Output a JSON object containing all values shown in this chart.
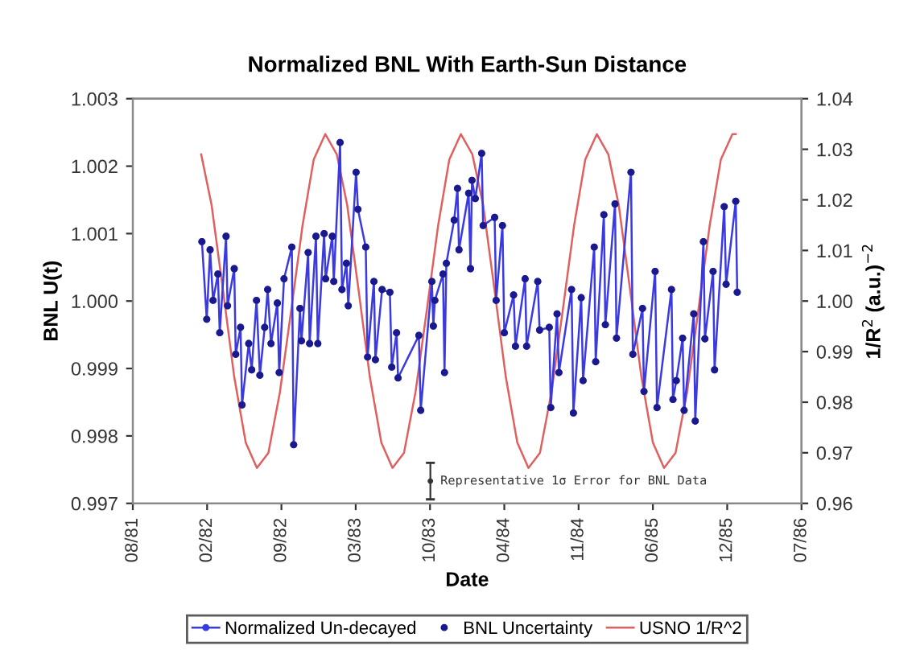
{
  "chart_data": {
    "type": "line",
    "title": "Normalized BNL With Earth-Sun Distance",
    "xlabel": "Date",
    "ylabel": "BNL U(t)",
    "y2label": "1/R$^{2}$ (a.u.)$^{−2}$",
    "x": [
      "1982-02-03",
      "1982-02-16",
      "1982-02-25",
      "1982-03-05",
      "1982-03-18",
      "1982-03-23",
      "1982-04-09",
      "1982-04-13",
      "1982-05-01",
      "1982-05-05",
      "1982-05-18",
      "1982-05-22",
      "1982-06-09",
      "1982-06-17",
      "1982-06-30",
      "1982-07-09",
      "1982-07-22",
      "1982-07-30",
      "1982-08-08",
      "1982-08-25",
      "1982-08-30",
      "1982-09-12",
      "1982-10-03",
      "1982-10-08",
      "1982-10-25",
      "1982-10-29",
      "1982-11-16",
      "1982-11-20",
      "1982-12-07",
      "1982-12-12",
      "1982-12-29",
      "1983-01-02",
      "1983-01-20",
      "1983-01-24",
      "1983-02-10",
      "1983-02-15",
      "1983-02-27",
      "1983-03-04",
      "1983-03-25",
      "1983-03-30",
      "1983-04-20",
      "1983-04-25",
      "1983-05-12",
      "1983-05-16",
      "1983-06-03",
      "1983-06-24",
      "1983-06-29",
      "1983-07-12",
      "1983-07-16",
      "1983-09-10",
      "1983-09-15",
      "1983-10-15",
      "1983-10-19",
      "1983-10-23",
      "1983-11-14",
      "1983-11-18",
      "1983-11-23",
      "1983-12-14",
      "1983-12-23",
      "1983-12-27",
      "1984-01-22",
      "1984-01-27",
      "1984-01-31",
      "1984-02-09",
      "1984-02-26",
      "1984-03-01",
      "1984-04-01",
      "1984-04-05",
      "1984-04-22",
      "1984-04-27",
      "1984-05-22",
      "1984-05-27",
      "1984-06-22",
      "1984-06-26",
      "1984-07-26",
      "1984-07-31",
      "1984-08-26",
      "1984-08-30",
      "1984-09-16",
      "1984-09-21",
      "1984-10-25",
      "1984-10-30",
      "1984-11-20",
      "1984-11-25",
      "1984-12-25",
      "1984-12-29",
      "1985-01-20",
      "1985-01-24",
      "1985-02-19",
      "1985-02-23",
      "1985-04-03",
      "1985-04-08",
      "1985-05-04",
      "1985-05-08",
      "1985-06-07",
      "1985-06-12",
      "1985-07-21",
      "1985-07-25",
      "1985-08-03",
      "1985-08-20",
      "1985-08-24",
      "1985-09-19",
      "1985-09-23",
      "1985-10-15",
      "1985-10-19",
      "1985-11-10",
      "1985-11-14",
      "1985-12-10",
      "1985-12-15",
      "1986-01-10",
      "1986-01-14"
    ],
    "series": [
      {
        "name": "Normalized Un-decayed",
        "marker": "circle",
        "color": "#3a3ae0",
        "values": [
          1.00088,
          0.99973,
          1.00076,
          1.00001,
          1.0004,
          0.99953,
          1.00096,
          0.99993,
          1.00048,
          0.99921,
          0.99961,
          0.99846,
          0.99937,
          0.99898,
          1.00001,
          0.9989,
          0.99961,
          1.00017,
          0.99937,
          0.99997,
          0.99894,
          1.00033,
          1.0008,
          0.99787,
          0.99989,
          0.99941,
          1.00072,
          0.99937,
          1.00096,
          0.99937,
          1.001,
          1.00033,
          1.00096,
          1.00029,
          1.00235,
          1.00017,
          1.00056,
          0.99993,
          1.00191,
          1.00136,
          1.0008,
          0.99917,
          1.00029,
          0.99913,
          1.00017,
          1.00013,
          0.99902,
          0.99953,
          0.99886,
          0.99949,
          0.99838,
          1.00029,
          0.99963,
          1.00001,
          1.0004,
          0.99894,
          1.00056,
          1.0012,
          1.00167,
          1.00076,
          1.0016,
          1.00048,
          1.00179,
          1.00152,
          1.00219,
          1.00112,
          1.00124,
          1.00001,
          1.00112,
          0.99953,
          1.00009,
          0.99933,
          1.00033,
          0.99933,
          1.00029,
          0.99957,
          0.99961,
          0.99842,
          0.99981,
          0.99894,
          1.00017,
          0.99834,
          1.00005,
          0.99882,
          1.0008,
          0.9991,
          1.00128,
          0.99965,
          1.00144,
          0.99945,
          1.00191,
          0.99921,
          0.99989,
          0.99866,
          1.00044,
          0.99842,
          1.00017,
          0.99854,
          0.99882,
          0.99945,
          0.99838,
          0.99981,
          0.99822,
          1.00088,
          0.99944,
          1.00044,
          0.99898,
          1.0014,
          1.00025,
          1.00148,
          1.00013
        ]
      },
      {
        "name": "BNL Uncertainty",
        "type": "scatter",
        "marker": "circle",
        "color": "#1a1a8c",
        "values": [
          1.00088,
          0.99973,
          1.00076,
          1.00001,
          1.0004,
          0.99953,
          1.00096,
          0.99993,
          1.00048,
          0.99921,
          0.99961,
          0.99846,
          0.99937,
          0.99898,
          1.00001,
          0.9989,
          0.99961,
          1.00017,
          0.99937,
          0.99997,
          0.99894,
          1.00033,
          1.0008,
          0.99787,
          0.99989,
          0.99941,
          1.00072,
          0.99937,
          1.00096,
          0.99937,
          1.001,
          1.00033,
          1.00096,
          1.00029,
          1.00235,
          1.00017,
          1.00056,
          0.99993,
          1.00191,
          1.00136,
          1.0008,
          0.99917,
          1.00029,
          0.99913,
          1.00017,
          1.00013,
          0.99902,
          0.99953,
          0.99886,
          0.99949,
          0.99838,
          1.00029,
          0.99963,
          1.00001,
          1.0004,
          0.99894,
          1.00056,
          1.0012,
          1.00167,
          1.00076,
          1.0016,
          1.00048,
          1.00179,
          1.00152,
          1.00219,
          1.00112,
          1.00124,
          1.00001,
          1.00112,
          0.99953,
          1.00009,
          0.99933,
          1.00033,
          0.99933,
          1.00029,
          0.99957,
          0.99961,
          0.99842,
          0.99981,
          0.99894,
          1.00017,
          0.99834,
          1.00005,
          0.99882,
          1.0008,
          0.9991,
          1.00128,
          0.99965,
          1.00144,
          0.99945,
          1.00191,
          0.99921,
          0.99989,
          0.99866,
          1.00044,
          0.99842,
          1.00017,
          0.99854,
          0.99882,
          0.99945,
          0.99838,
          0.99981,
          0.99822,
          1.00088,
          0.99944,
          1.00044,
          0.99898,
          1.0014,
          1.00025,
          1.00148,
          1.00013
        ]
      },
      {
        "name": "USNO 1/R^2",
        "type": "line",
        "marker": "none",
        "axis": "y2",
        "color": "#e06060",
        "x": [
          "1982-02-01",
          "1982-03-01",
          "1982-04-01",
          "1982-05-01",
          "1982-06-01",
          "1982-07-01",
          "1982-08-01",
          "1982-09-01",
          "1982-10-01",
          "1982-11-01",
          "1982-12-01",
          "1983-01-01",
          "1983-02-01",
          "1983-03-01",
          "1983-04-01",
          "1983-05-01",
          "1983-06-01",
          "1983-07-01",
          "1983-08-01",
          "1983-09-01",
          "1983-10-01",
          "1983-11-01",
          "1983-12-01",
          "1984-01-01",
          "1984-02-01",
          "1984-03-01",
          "1984-04-01",
          "1984-05-01",
          "1984-06-01",
          "1984-07-01",
          "1984-08-01",
          "1984-09-01",
          "1984-10-01",
          "1984-11-01",
          "1984-12-01",
          "1985-01-01",
          "1985-02-01",
          "1985-03-01",
          "1985-04-01",
          "1985-05-01",
          "1985-06-01",
          "1985-07-01",
          "1985-08-01",
          "1985-09-01",
          "1985-10-01",
          "1985-11-01",
          "1985-12-01",
          "1986-01-01",
          "1986-01-10"
        ],
        "values": [
          1.029,
          1.019,
          1.002,
          0.985,
          0.972,
          0.967,
          0.97,
          0.982,
          0.998,
          1.015,
          1.028,
          1.033,
          1.029,
          1.019,
          1.002,
          0.985,
          0.972,
          0.967,
          0.97,
          0.982,
          0.998,
          1.015,
          1.028,
          1.033,
          1.029,
          1.019,
          1.002,
          0.985,
          0.972,
          0.967,
          0.97,
          0.982,
          0.998,
          1.015,
          1.028,
          1.033,
          1.029,
          1.019,
          1.002,
          0.985,
          0.972,
          0.967,
          0.97,
          0.982,
          0.998,
          1.015,
          1.028,
          1.033,
          1.033
        ]
      }
    ],
    "xlim": [
      "1981-08-01",
      "1986-07-06"
    ],
    "xticks": [
      {
        "value": "1981-08-01",
        "label": "08/81"
      },
      {
        "value": "1982-02-17",
        "label": "02/82"
      },
      {
        "value": "1982-09-05",
        "label": "09/82"
      },
      {
        "value": "1983-03-24",
        "label": "03/83"
      },
      {
        "value": "1983-10-10",
        "label": "10/83"
      },
      {
        "value": "1984-04-27",
        "label": "04/84"
      },
      {
        "value": "1984-11-13",
        "label": "11/84"
      },
      {
        "value": "1985-06-01",
        "label": "06/85"
      },
      {
        "value": "1985-12-18",
        "label": "12/85"
      },
      {
        "value": "1986-07-06",
        "label": "07/86"
      }
    ],
    "ylim": [
      0.997,
      1.003
    ],
    "yticks": [
      0.997,
      0.998,
      0.999,
      {
        "value": 1.0,
        "label": "1.000"
      },
      1.001,
      1.002,
      1.003
    ],
    "y2lim": [
      0.96,
      1.04
    ],
    "y2ticks": [
      0.96,
      0.97,
      0.98,
      0.99,
      {
        "value": 1.0,
        "label": "1.00"
      },
      1.01,
      1.02,
      1.03,
      1.04
    ],
    "annotations": [
      "Representative 1σ Error for BNL Data"
    ],
    "grid": false,
    "legend": "bottom"
  }
}
